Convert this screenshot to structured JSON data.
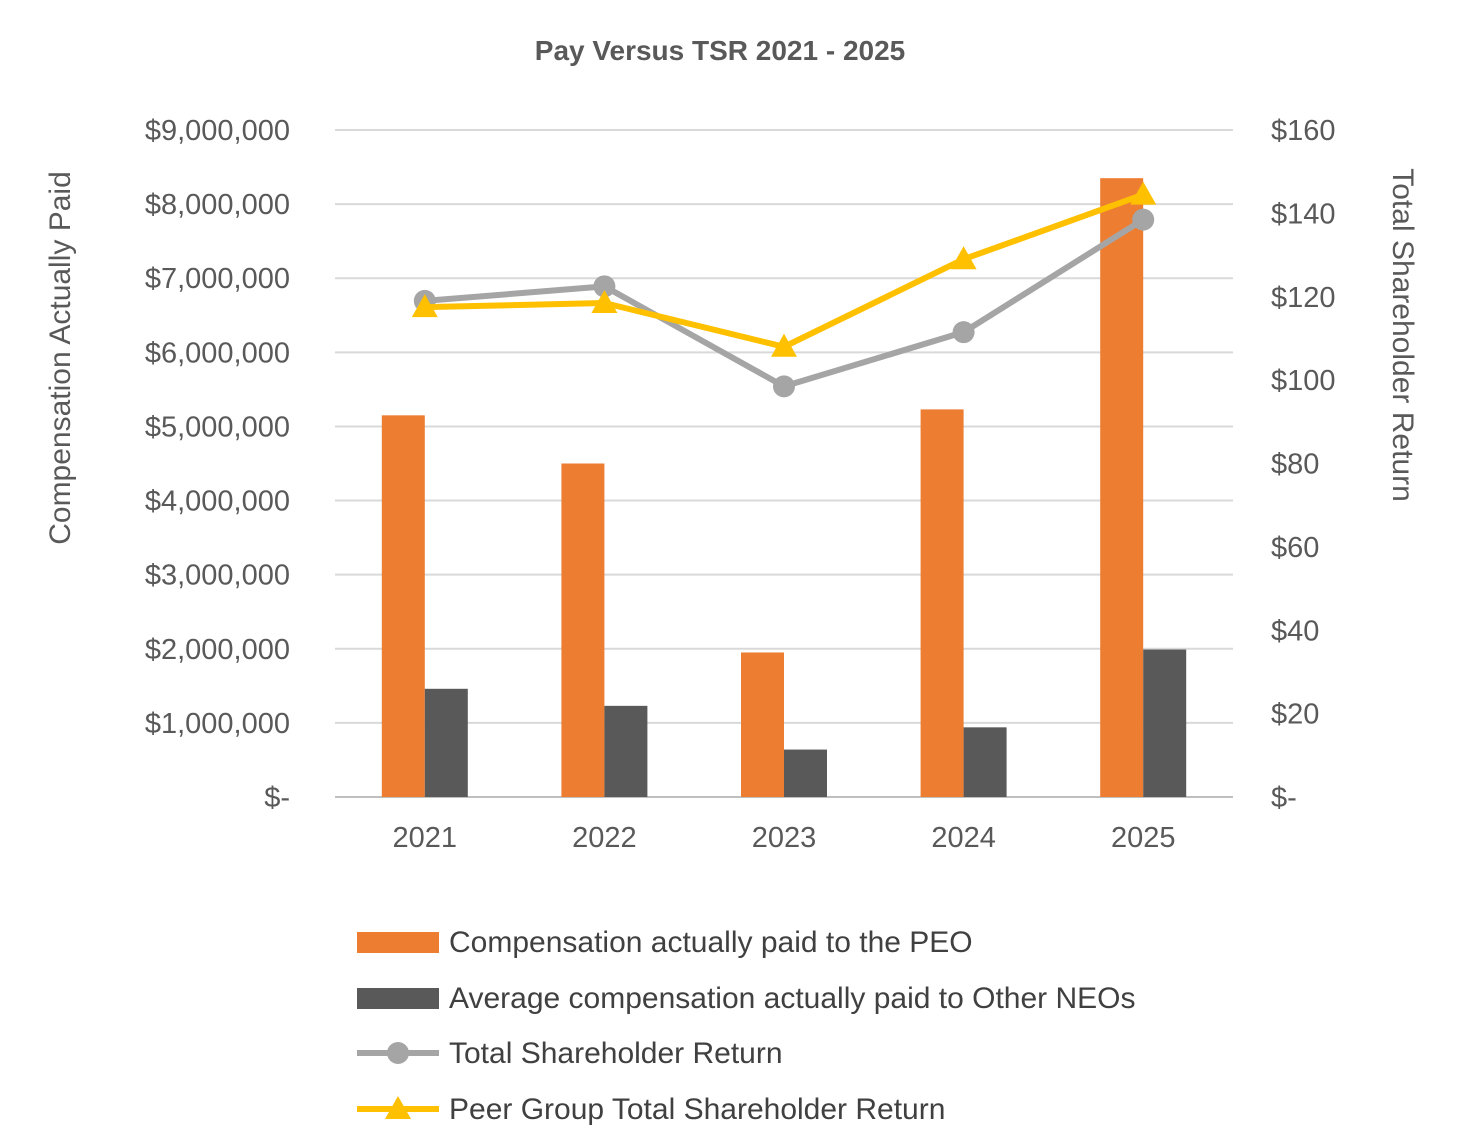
{
  "chart_data": {
    "type": "bar",
    "title": "Pay Versus TSR 2021 - 2025",
    "categories": [
      "2021",
      "2022",
      "2023",
      "2024",
      "2025"
    ],
    "y_left": {
      "label": "Compensation Actually Paid",
      "range": [
        0,
        9000000
      ],
      "ticks": [
        0,
        1000000,
        2000000,
        3000000,
        4000000,
        5000000,
        6000000,
        7000000,
        8000000,
        9000000
      ],
      "tick_labels": [
        "$-",
        "$1,000,000",
        "$2,000,000",
        "$3,000,000",
        "$4,000,000",
        "$5,000,000",
        "$6,000,000",
        "$7,000,000",
        "$8,000,000",
        "$9,000,000"
      ]
    },
    "y_right": {
      "label": "Total Shareholder Return",
      "range": [
        0,
        160
      ],
      "ticks": [
        0,
        20,
        40,
        60,
        80,
        100,
        120,
        140,
        160
      ],
      "tick_labels": [
        "$-",
        "$20",
        "$40",
        "$60",
        "$80",
        "$100",
        "$120",
        "$140",
        "$160"
      ]
    },
    "grid": true,
    "legend_position": "bottom",
    "series": [
      {
        "name": "Compensation actually paid to the PEO",
        "kind": "bar",
        "axis": "left",
        "color": "#ED7D31",
        "values": [
          5150000,
          4500000,
          1950000,
          5230000,
          8350000
        ]
      },
      {
        "name": "Average compensation actually paid to Other NEOs",
        "kind": "bar",
        "axis": "left",
        "color": "#595959",
        "values": [
          1460000,
          1230000,
          640000,
          940000,
          1990000
        ]
      },
      {
        "name": "Total Shareholder Return",
        "kind": "line",
        "axis": "right",
        "color": "#A5A5A5",
        "marker": "circle",
        "values": [
          119,
          122.5,
          98.5,
          111.5,
          138.5
        ]
      },
      {
        "name": "Peer Group Total Shareholder Return",
        "kind": "line",
        "axis": "right",
        "color": "#FFC000",
        "marker": "triangle",
        "values": [
          117.5,
          118.5,
          108,
          129,
          144.5
        ]
      }
    ]
  }
}
